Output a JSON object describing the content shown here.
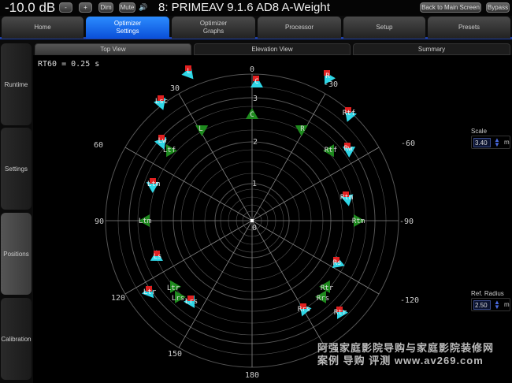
{
  "topbar": {
    "volume": "-10.0 dB",
    "minus": "-",
    "plus": "+",
    "dim": "Dim",
    "mute": "Mute",
    "title": "8: PRIMEAV 9.1.6 AD8 A-Weight",
    "back": "Back to Main Screen",
    "bypass": "Bypass",
    "speaker_icon": "speaker-volume-icon"
  },
  "tabs": [
    "Home",
    "Optimizer Settings",
    "Optimizer Graphs",
    "Processor",
    "Setup",
    "Presets"
  ],
  "active_tab": "Optimizer Settings",
  "sidebar": [
    "Runtime",
    "Settings",
    "Positions",
    "Calibration"
  ],
  "active_side": "Positions",
  "subtabs": [
    "Top View",
    "Elevation View",
    "Summary"
  ],
  "active_subtab": "Top View",
  "rt60": "RT60 = 0.25 s",
  "plot": {
    "angle_labels": [
      "0",
      "-30",
      "-60",
      "-90",
      "-120",
      "180",
      "150",
      "120",
      "90",
      "60",
      "30"
    ],
    "distance_labels": [
      "3",
      "2",
      "1",
      "0"
    ],
    "measured_speakers": [
      "L",
      "C",
      "R",
      "Lsc",
      "Rtf",
      "Lw",
      "Rw",
      "Ltm",
      "Rtm",
      "Ls",
      "Rs",
      "Ltr",
      "Lrs",
      "Rrs",
      "Rtr"
    ],
    "target_speakers": [
      "C",
      "L",
      "R",
      "Ltf",
      "Rtf",
      "Ltm",
      "Rtm",
      "Ltr",
      "Lrs",
      "Rtr",
      "Rrs"
    ],
    "colors": {
      "measured": "#2fd6e6",
      "measured_marker": "#e02020",
      "target": "#1e8a1e",
      "grid": "#555555"
    }
  },
  "scale": {
    "label": "Scale",
    "value": "3.40",
    "unit": "m"
  },
  "ref_radius": {
    "label": "Ref. Radius",
    "value": "2.50",
    "unit": "m"
  },
  "watermark": {
    "line1": "阿强家庭影院导购与家庭影院装修网",
    "line2": "案例 导购 评测  www.av269.com"
  }
}
